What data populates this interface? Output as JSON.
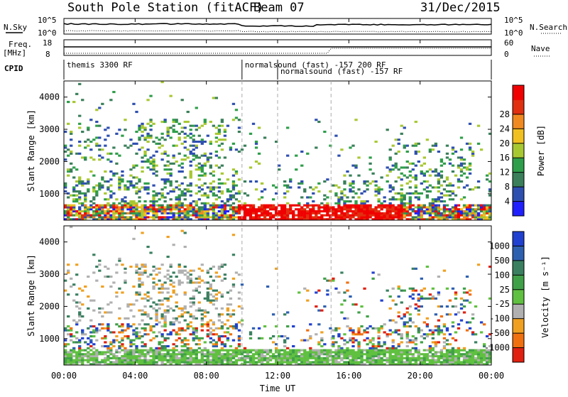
{
  "header": {
    "station": "South Pole Station (fitACF)",
    "beam": "Beam 07",
    "date": "31/Dec/2015"
  },
  "aux_labels": {
    "nsky": "N.Sky",
    "nsearch": "N.Search",
    "freq": "Freq.",
    "freq_unit": "[MHz]",
    "nave": "Nave",
    "cpid": "CPID",
    "noise_top": "10^5",
    "noise_bottom": "10^0",
    "freq_top": "18",
    "freq_bottom": "8",
    "nave_top": "60",
    "nave_bottom": "0"
  },
  "cpid_labels": [
    {
      "text": "themis 3300 RF",
      "row": 0,
      "start_hr": 0.0
    },
    {
      "text": "normalsound (fast) -157 200 RF",
      "row": 0,
      "start_hr": 10.0
    },
    {
      "text": "normalsound (fast) -157 RF",
      "row": 1,
      "start_hr": 12.0
    }
  ],
  "chart_data": [
    {
      "type": "heatmap",
      "name": "power-panel",
      "ylabel": "Slant Range [km]",
      "y_ticks": [
        "1000",
        "2000",
        "3000",
        "4000"
      ],
      "colorbar_label": "Power [dB]",
      "colorbar_ticks": [
        "4",
        "8",
        "12",
        "16",
        "20",
        "24",
        "28"
      ],
      "colorbar_colors": [
        "#2020ff",
        "#2e4fb0",
        "#3a7f5a",
        "#2e9e4a",
        "#a8c832",
        "#f0c020",
        "#f08a20",
        "#e03010",
        "#f00000"
      ]
    },
    {
      "type": "heatmap",
      "name": "velocity-panel",
      "ylabel": "Slant Range [km]",
      "y_ticks": [
        "1000",
        "2000",
        "3000",
        "4000"
      ],
      "colorbar_label": "Velocity [m s⁻¹]",
      "colorbar_ticks": [
        "1000",
        "500",
        "100",
        "25",
        "-25",
        "-100",
        "-500",
        "-1000"
      ],
      "colorbar_colors": [
        "#2040d0",
        "#2e60b0",
        "#3a8060",
        "#40a048",
        "#60c040",
        "#b0b0b0",
        "#f0a020",
        "#f07010",
        "#e02010"
      ]
    }
  ],
  "x_axis": {
    "label": "Time UT",
    "ticks": [
      "00:00",
      "04:00",
      "08:00",
      "12:00",
      "16:00",
      "20:00",
      "00:00"
    ]
  },
  "mode_change_hours": [
    10.0,
    12.0,
    15.0
  ],
  "colors": {
    "axis": "#000000",
    "dashed": "#aaaaaa",
    "noise_line": "#000000"
  }
}
